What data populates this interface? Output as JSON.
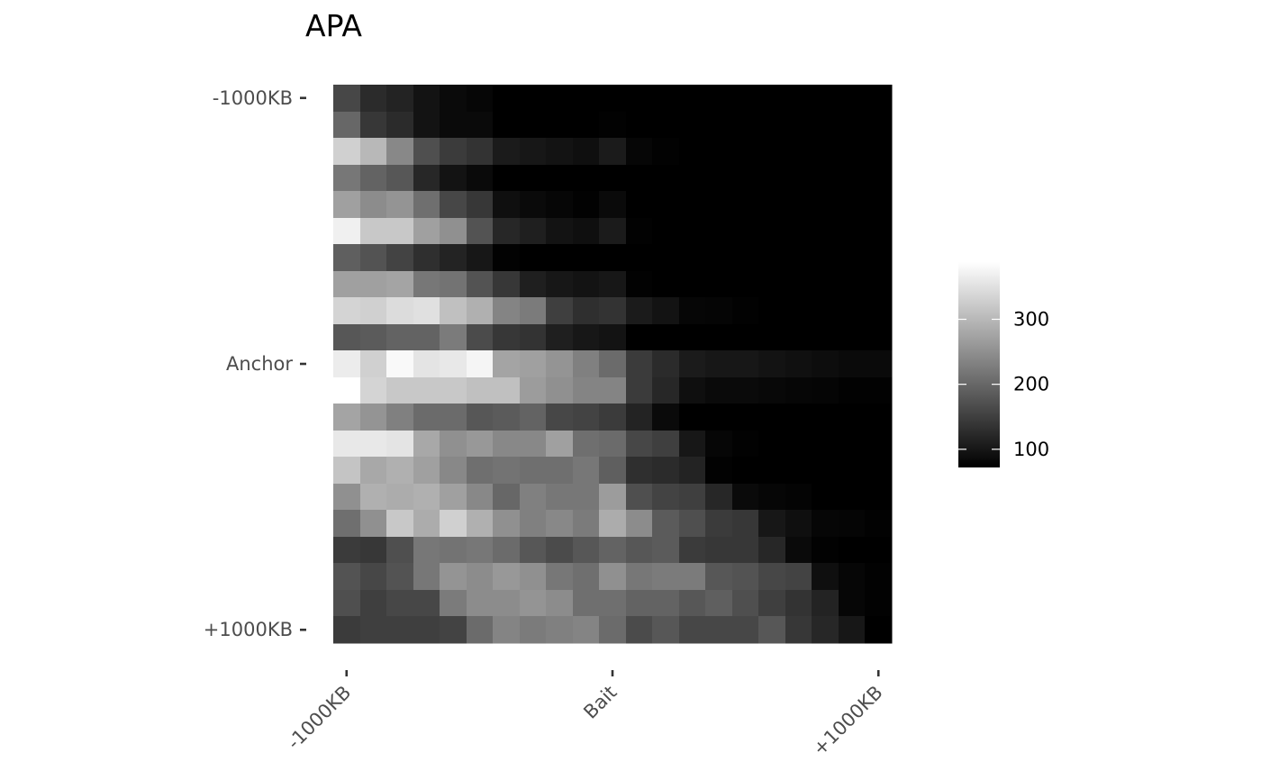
{
  "chart_data": {
    "type": "heatmap",
    "title": "APA",
    "xlabel": "",
    "ylabel": "",
    "x_ticks": [
      "-1000KB",
      "Bait",
      "+1000KB"
    ],
    "y_ticks": [
      "-1000KB",
      "Anchor",
      "+1000KB"
    ],
    "color_scale": {
      "low_color": "#000000",
      "high_color": "#ffffff",
      "min": 72,
      "max": 388,
      "breaks": [
        100,
        200,
        300
      ]
    },
    "grid": false,
    "legend_position": "right",
    "values": [
      [
        160,
        125,
        115,
        95,
        85,
        80,
        65,
        65,
        62,
        60,
        70,
        55,
        50,
        48,
        47,
        47,
        45,
        45,
        42,
        40,
        40
      ],
      [
        200,
        140,
        125,
        95,
        85,
        85,
        70,
        68,
        65,
        65,
        75,
        55,
        53,
        50,
        48,
        48,
        47,
        46,
        45,
        44,
        44
      ],
      [
        330,
        300,
        240,
        170,
        145,
        135,
        105,
        100,
        95,
        90,
        105,
        80,
        75,
        70,
        68,
        68,
        67,
        65,
        62,
        60,
        58
      ],
      [
        220,
        195,
        180,
        120,
        95,
        85,
        70,
        68,
        65,
        62,
        70,
        55,
        52,
        48,
        47,
        46,
        45,
        44,
        43,
        42,
        42
      ],
      [
        270,
        245,
        255,
        210,
        160,
        140,
        90,
        85,
        80,
        75,
        85,
        65,
        62,
        55,
        53,
        52,
        52,
        50,
        48,
        47,
        46
      ],
      [
        370,
        320,
        320,
        270,
        250,
        175,
        120,
        110,
        95,
        90,
        105,
        75,
        70,
        60,
        58,
        56,
        55,
        53,
        52,
        50,
        50
      ],
      [
        190,
        175,
        155,
        130,
        115,
        100,
        75,
        65,
        60,
        58,
        62,
        48,
        45,
        40,
        38,
        37,
        36,
        35,
        33,
        30,
        30
      ],
      [
        270,
        270,
        275,
        220,
        215,
        175,
        140,
        110,
        100,
        95,
        100,
        75,
        70,
        60,
        58,
        56,
        55,
        53,
        52,
        50,
        50
      ],
      [
        335,
        330,
        345,
        350,
        310,
        290,
        235,
        225,
        150,
        130,
        135,
        105,
        95,
        80,
        78,
        75,
        72,
        70,
        66,
        63,
        63
      ],
      [
        180,
        185,
        195,
        195,
        225,
        165,
        140,
        135,
        110,
        100,
        95,
        70,
        68,
        60,
        56,
        54,
        52,
        50,
        48,
        46,
        46
      ],
      [
        365,
        330,
        380,
        355,
        360,
        375,
        275,
        270,
        255,
        230,
        205,
        145,
        125,
        105,
        100,
        100,
        95,
        92,
        88,
        85,
        85
      ],
      [
        388,
        335,
        320,
        320,
        320,
        310,
        310,
        265,
        250,
        235,
        235,
        145,
        120,
        90,
        85,
        85,
        82,
        80,
        78,
        75,
        75
      ],
      [
        275,
        255,
        230,
        205,
        205,
        180,
        185,
        195,
        160,
        155,
        145,
        115,
        85,
        65,
        60,
        58,
        55,
        52,
        50,
        48,
        48
      ],
      [
        360,
        360,
        355,
        280,
        250,
        260,
        240,
        240,
        270,
        210,
        205,
        160,
        150,
        100,
        80,
        75,
        72,
        70,
        68,
        65,
        63
      ],
      [
        315,
        280,
        290,
        270,
        240,
        210,
        215,
        210,
        210,
        220,
        190,
        130,
        125,
        115,
        75,
        70,
        68,
        65,
        63,
        60,
        58
      ],
      [
        250,
        290,
        285,
        290,
        270,
        240,
        200,
        230,
        220,
        220,
        265,
        170,
        155,
        150,
        120,
        85,
        80,
        77,
        72,
        70,
        68
      ],
      [
        210,
        250,
        320,
        285,
        330,
        290,
        250,
        230,
        240,
        225,
        285,
        245,
        185,
        170,
        145,
        140,
        100,
        90,
        80,
        78,
        75
      ],
      [
        145,
        140,
        170,
        220,
        215,
        220,
        205,
        180,
        165,
        180,
        195,
        180,
        185,
        145,
        140,
        140,
        120,
        85,
        75,
        70,
        67
      ],
      [
        175,
        160,
        175,
        220,
        255,
        245,
        260,
        250,
        220,
        210,
        250,
        220,
        225,
        225,
        180,
        175,
        160,
        155,
        90,
        80,
        75
      ],
      [
        170,
        150,
        160,
        160,
        225,
        245,
        245,
        255,
        245,
        210,
        210,
        195,
        195,
        180,
        190,
        170,
        150,
        135,
        115,
        80,
        75
      ],
      [
        145,
        150,
        150,
        150,
        155,
        205,
        235,
        225,
        230,
        235,
        205,
        165,
        180,
        160,
        160,
        160,
        180,
        140,
        120,
        100,
        70
      ]
    ]
  }
}
